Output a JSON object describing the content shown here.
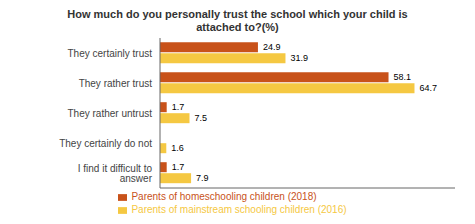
{
  "chart_data": {
    "type": "bar",
    "orientation": "horizontal",
    "title": "How much do you personally trust the school which your child is\nattached to?(%)",
    "categories": [
      "They certainly trust",
      "They rather trust",
      "They rather untrust",
      "They certainly do not",
      "I find it difficult to answer"
    ],
    "series": [
      {
        "name": "Parents of homeschooling children (2018)",
        "color": "#C8521A",
        "values": [
          24.9,
          58.1,
          1.7,
          0,
          1.7
        ]
      },
      {
        "name": "Parents of mainstream schooling children (2016)",
        "color": "#F5C842",
        "values": [
          31.9,
          64.7,
          7.5,
          1.6,
          7.9
        ]
      }
    ],
    "xlim": [
      0,
      75
    ],
    "data_labels": true,
    "tick_labels": "y",
    "grid": false,
    "legend": "bottom"
  }
}
